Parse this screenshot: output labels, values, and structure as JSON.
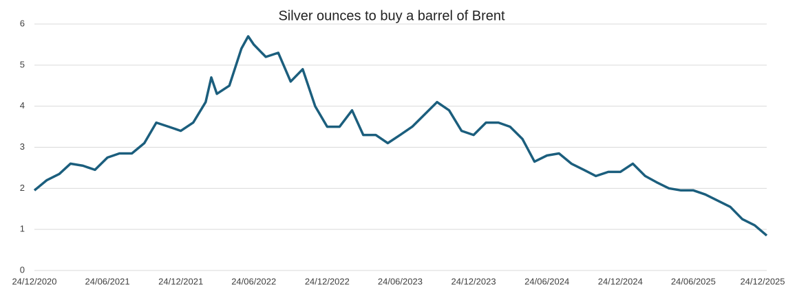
{
  "chart_data": {
    "type": "line",
    "title": "Silver ounces to buy a barrel of Brent",
    "x": [
      "24/12/2020",
      "24/01/2021",
      "24/02/2021",
      "24/03/2021",
      "24/04/2021",
      "24/05/2021",
      "24/06/2021",
      "24/07/2021",
      "24/08/2021",
      "24/09/2021",
      "24/10/2021",
      "24/11/2021",
      "24/12/2021",
      "24/01/2022",
      "24/02/2022",
      "10/03/2022",
      "24/03/2022",
      "24/04/2022",
      "24/05/2022",
      "10/06/2022",
      "24/06/2022",
      "24/07/2022",
      "24/08/2022",
      "24/09/2022",
      "24/10/2022",
      "24/11/2022",
      "24/12/2022",
      "24/01/2023",
      "24/02/2023",
      "24/03/2023",
      "24/04/2023",
      "24/05/2023",
      "24/06/2023",
      "24/07/2023",
      "24/08/2023",
      "24/09/2023",
      "24/10/2023",
      "24/11/2023",
      "24/12/2023",
      "24/01/2024",
      "24/02/2024",
      "24/03/2024",
      "24/04/2024",
      "24/05/2024",
      "24/06/2024",
      "24/07/2024",
      "24/08/2024",
      "24/09/2024",
      "24/10/2024",
      "24/11/2024",
      "24/12/2024",
      "24/01/2025",
      "24/02/2025",
      "24/03/2025",
      "24/04/2025",
      "24/05/2025",
      "24/06/2025",
      "24/07/2025",
      "24/08/2025",
      "24/09/2025",
      "24/10/2025",
      "24/11/2025",
      "24/12/2025"
    ],
    "series": [
      {
        "name": "Silver ounces to buy a barrel of Brent",
        "color": "#1b5e7d",
        "values": [
          1.95,
          2.2,
          2.35,
          2.6,
          2.55,
          2.45,
          2.75,
          2.85,
          2.85,
          3.1,
          3.6,
          3.5,
          3.4,
          3.6,
          4.1,
          4.7,
          4.3,
          4.5,
          5.4,
          5.7,
          5.5,
          5.2,
          5.3,
          4.6,
          4.9,
          4.0,
          3.5,
          3.5,
          3.9,
          3.3,
          3.3,
          3.1,
          3.3,
          3.5,
          3.8,
          4.1,
          3.9,
          3.4,
          3.3,
          3.6,
          3.6,
          3.5,
          3.2,
          2.65,
          2.8,
          2.85,
          2.6,
          2.45,
          2.3,
          2.4,
          2.4,
          2.6,
          2.3,
          2.15,
          2.0,
          1.95,
          1.95,
          1.85,
          1.7,
          1.55,
          1.25,
          1.1,
          0.85
        ]
      }
    ],
    "xlim": [
      "24/12/2020",
      "24/12/2025"
    ],
    "xticks": [
      "24/12/2020",
      "24/06/2021",
      "24/12/2021",
      "24/06/2022",
      "24/12/2022",
      "24/06/2023",
      "24/12/2023",
      "24/06/2024",
      "24/12/2024",
      "24/06/2025",
      "24/12/2025"
    ],
    "ylim": [
      0,
      6
    ],
    "yticks": [
      0,
      1,
      2,
      3,
      4,
      5,
      6
    ],
    "grid": true
  }
}
